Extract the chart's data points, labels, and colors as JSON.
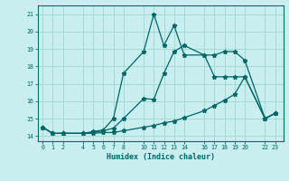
{
  "xlabel": "Humidex (Indice chaleur)",
  "bg_color": "#c8eef0",
  "grid_color": "#a8d8d0",
  "line_color": "#006666",
  "xlim": [
    -0.5,
    23.8
  ],
  "ylim": [
    13.7,
    21.5
  ],
  "xticks": [
    0,
    1,
    2,
    4,
    5,
    6,
    7,
    8,
    10,
    11,
    12,
    13,
    14,
    16,
    17,
    18,
    19,
    20,
    22,
    23
  ],
  "yticks": [
    14,
    15,
    16,
    17,
    18,
    19,
    20,
    21
  ],
  "series_spiky_x": [
    0,
    1,
    2,
    4,
    5,
    6,
    7,
    8,
    10,
    11,
    12,
    13,
    14,
    16,
    17,
    18,
    19,
    20,
    22,
    23
  ],
  "series_spiky_y": [
    14.5,
    14.15,
    14.15,
    14.15,
    14.25,
    14.35,
    15.0,
    17.6,
    18.85,
    21.0,
    19.2,
    20.35,
    18.65,
    18.65,
    17.4,
    17.4,
    17.4,
    17.4,
    15.0,
    15.3
  ],
  "series_mid_x": [
    0,
    1,
    2,
    4,
    5,
    6,
    7,
    8,
    10,
    11,
    12,
    13,
    14,
    16,
    17,
    18,
    19,
    20,
    22,
    23
  ],
  "series_mid_y": [
    14.5,
    14.15,
    14.15,
    14.15,
    14.2,
    14.3,
    14.45,
    15.0,
    16.15,
    16.1,
    17.6,
    18.85,
    19.2,
    18.65,
    18.65,
    18.85,
    18.85,
    18.35,
    15.0,
    15.3
  ],
  "series_low_x": [
    0,
    1,
    2,
    4,
    5,
    6,
    7,
    8,
    10,
    11,
    12,
    13,
    14,
    16,
    17,
    18,
    19,
    20,
    22,
    23
  ],
  "series_low_y": [
    14.5,
    14.15,
    14.15,
    14.15,
    14.15,
    14.2,
    14.2,
    14.3,
    14.5,
    14.6,
    14.75,
    14.85,
    15.05,
    15.45,
    15.75,
    16.05,
    16.4,
    17.4,
    15.0,
    15.3
  ]
}
